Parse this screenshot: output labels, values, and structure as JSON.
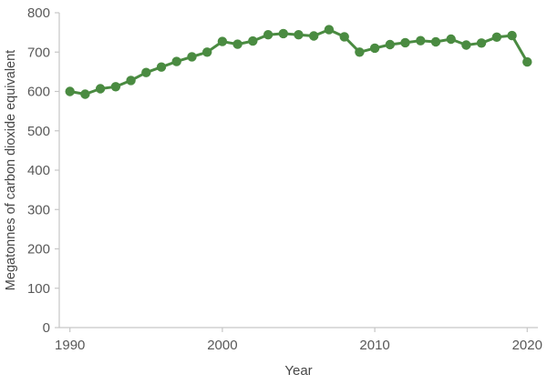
{
  "chart_data": {
    "type": "line",
    "title": "",
    "xlabel": "Year",
    "ylabel": "Megatonnes of carbon dioxide equivalent",
    "x": [
      1990,
      1991,
      1992,
      1993,
      1994,
      1995,
      1996,
      1997,
      1998,
      1999,
      2000,
      2001,
      2002,
      2003,
      2004,
      2005,
      2006,
      2007,
      2008,
      2009,
      2010,
      2011,
      2012,
      2013,
      2014,
      2015,
      2016,
      2017,
      2018,
      2019,
      2020
    ],
    "values": [
      600,
      593,
      607,
      612,
      628,
      648,
      662,
      676,
      688,
      700,
      727,
      720,
      728,
      744,
      747,
      744,
      741,
      757,
      739,
      700,
      710,
      719,
      724,
      729,
      726,
      733,
      718,
      723,
      738,
      742,
      675
    ],
    "xticks": [
      1990,
      2000,
      2010,
      2020
    ],
    "yticks": [
      0,
      100,
      200,
      300,
      400,
      500,
      600,
      700,
      800
    ],
    "xlim": [
      1989.3,
      2020.7
    ],
    "ylim": [
      0,
      800
    ],
    "grid": false,
    "legend": null,
    "line_color": "#4a8b41",
    "marker_color": "#4a8b41",
    "axis_color": "#c6c6c6",
    "tick_label_color": "#595959",
    "axis_label_color": "#474747"
  }
}
